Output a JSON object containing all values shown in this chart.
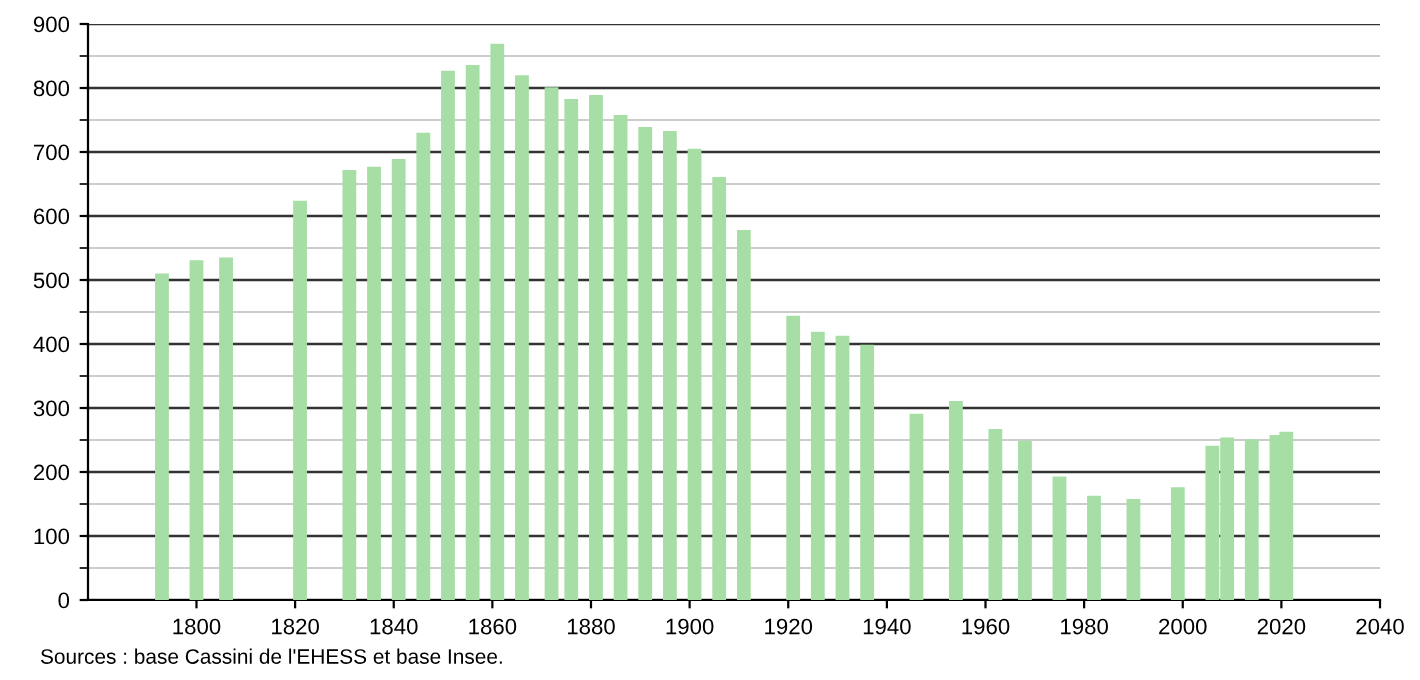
{
  "chart_data": {
    "type": "bar",
    "x": [
      1793,
      1800,
      1806,
      1821,
      1831,
      1836,
      1841,
      1846,
      1851,
      1856,
      1861,
      1866,
      1872,
      1876,
      1881,
      1886,
      1891,
      1896,
      1901,
      1906,
      1911,
      1921,
      1926,
      1931,
      1936,
      1946,
      1954,
      1962,
      1968,
      1975,
      1982,
      1990,
      1999,
      2006,
      2009,
      2014,
      2019,
      2021
    ],
    "values": [
      510,
      531,
      535,
      624,
      672,
      677,
      689,
      730,
      827,
      836,
      869,
      820,
      801,
      783,
      789,
      758,
      739,
      733,
      705,
      661,
      578,
      444,
      419,
      413,
      399,
      291,
      311,
      267,
      249,
      193,
      163,
      158,
      176,
      241,
      254,
      251,
      258,
      263
    ],
    "color": "#a6dea6",
    "xlim": [
      1778,
      2040
    ],
    "xticks": [
      1800,
      1820,
      1840,
      1860,
      1880,
      1900,
      1920,
      1940,
      1960,
      1980,
      2000,
      2020,
      2040
    ],
    "ylim": [
      0,
      900
    ],
    "yticks": [
      0,
      100,
      200,
      300,
      400,
      500,
      600,
      700,
      800,
      900
    ],
    "grid": "y",
    "annotations": [
      "Sources : base Cassini de l'EHESS et base Insee."
    ]
  }
}
